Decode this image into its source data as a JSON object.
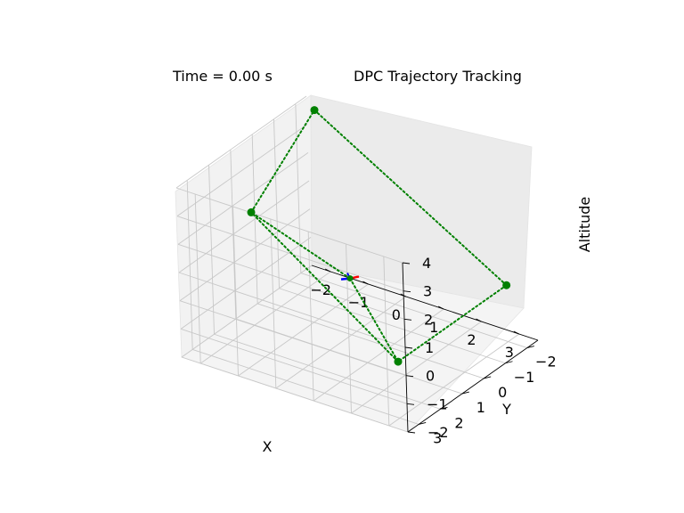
{
  "chart_data": {
    "type": "scatter",
    "projection": "3d",
    "title": "DPC Trajectory Tracking",
    "time_text": "Time = 0.00 s",
    "xlabel": "X",
    "ylabel": "Y",
    "zlabel": "Altitude",
    "xlim": [
      -2.5,
      3.5
    ],
    "ylim": [
      -2.5,
      3.5
    ],
    "zlim": [
      -2,
      4
    ],
    "x_ticks": [
      "−2",
      "−1",
      "0",
      "1",
      "2",
      "3"
    ],
    "y_ticks": [
      "−2",
      "−1",
      "0",
      "1",
      "2",
      "3"
    ],
    "z_ticks": [
      "−2",
      "−1",
      "0",
      "1",
      "2",
      "3",
      "4"
    ],
    "grid": true,
    "waypoint_color": "#008000",
    "waypoints": [
      {
        "x": -2,
        "y": 1,
        "z": 2
      },
      {
        "x": -2,
        "y": -2,
        "z": 4
      },
      {
        "x": 3,
        "y": -2,
        "z": 0
      },
      {
        "x": 3,
        "y": 3,
        "z": 0
      }
    ],
    "path_order": [
      0,
      1,
      2,
      3,
      0
    ],
    "path_style": "dotted",
    "vehicle": {
      "x": 0,
      "y": 0,
      "z": 0,
      "arm_colors": [
        "#ff0000",
        "#0000ff",
        "#008000"
      ]
    }
  }
}
